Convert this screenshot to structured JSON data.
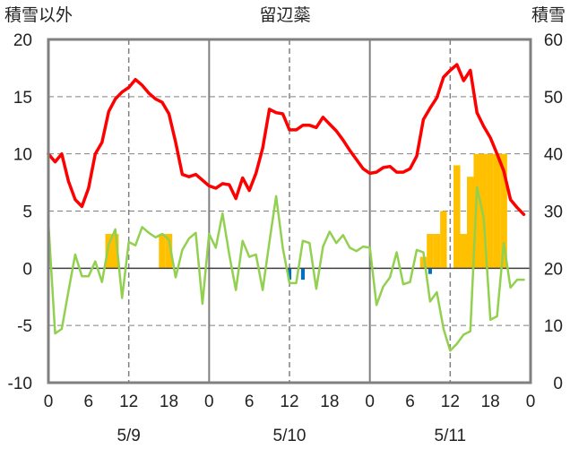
{
  "chart_data": {
    "type": "line",
    "title": "留辺蘂",
    "ylabel_left": "積雪以外",
    "ylabel_right": "積雪",
    "ylim_left": [
      -10,
      20
    ],
    "ylim_right": [
      0,
      60
    ],
    "yticks_left": [
      20,
      15,
      10,
      5,
      0,
      -5,
      -10
    ],
    "yticks_right": [
      60,
      50,
      40,
      30,
      20,
      10,
      0
    ],
    "xlim_hours": [
      0,
      72
    ],
    "xticks": [
      {
        "h": 0,
        "label": "0"
      },
      {
        "h": 6,
        "label": "6"
      },
      {
        "h": 12,
        "label": "12"
      },
      {
        "h": 18,
        "label": "18"
      },
      {
        "h": 24,
        "label": "0"
      },
      {
        "h": 30,
        "label": "6"
      },
      {
        "h": 36,
        "label": "12"
      },
      {
        "h": 42,
        "label": "18"
      },
      {
        "h": 48,
        "label": "0"
      },
      {
        "h": 54,
        "label": "6"
      },
      {
        "h": 60,
        "label": "12"
      },
      {
        "h": 66,
        "label": "18"
      },
      {
        "h": 72,
        "label": "0"
      }
    ],
    "date_labels": [
      {
        "h": 12,
        "label": "5/9"
      },
      {
        "h": 36,
        "label": "5/10"
      },
      {
        "h": 60,
        "label": "5/11"
      }
    ],
    "grid": {
      "day_lines_solid": [
        24,
        48
      ],
      "noon_lines_dashed": [
        12,
        36,
        60
      ],
      "horizontal_dashed": true
    },
    "colors": {
      "temperature": "#ff0000",
      "dewpoint": "#92d050",
      "precipitation": "#ffc000",
      "negative_bar": "#0070c0",
      "snow_depth": "#7030a0",
      "frame": "#808080"
    },
    "series": [
      {
        "key": "temperature",
        "axis": "left",
        "x": [
          0,
          1,
          2,
          3,
          4,
          5,
          6,
          7,
          8,
          9,
          10,
          11,
          12,
          13,
          14,
          15,
          16,
          17,
          18,
          19,
          20,
          21,
          22,
          23,
          24,
          25,
          26,
          27,
          28,
          29,
          30,
          31,
          32,
          33,
          34,
          35,
          36,
          37,
          38,
          39,
          40,
          41,
          42,
          43,
          44,
          45,
          46,
          47,
          48,
          49,
          50,
          51,
          52,
          53,
          54,
          55,
          56,
          57,
          58,
          59,
          60,
          61,
          62,
          63,
          64,
          65,
          66,
          67,
          68,
          69,
          70,
          71
        ],
        "values": [
          10.0,
          9.3,
          10.0,
          7.6,
          6.0,
          5.4,
          7.0,
          10.0,
          11.0,
          13.7,
          14.8,
          15.4,
          15.8,
          16.5,
          16.0,
          15.3,
          14.8,
          14.5,
          13.5,
          11.0,
          8.2,
          8.0,
          8.2,
          7.7,
          7.2,
          7.0,
          7.4,
          7.3,
          6.1,
          7.9,
          6.8,
          8.3,
          10.5,
          13.9,
          13.6,
          13.5,
          12.1,
          12.1,
          12.5,
          12.5,
          12.3,
          13.2,
          12.6,
          12.0,
          11.2,
          10.3,
          9.5,
          8.7,
          8.3,
          8.4,
          8.8,
          8.9,
          8.4,
          8.4,
          8.7,
          9.8,
          13.0,
          14.0,
          14.9,
          16.7,
          17.3,
          17.8,
          16.4,
          17.3,
          13.6,
          12.4,
          11.4,
          10.0,
          8.5,
          6.0,
          5.3,
          4.7
        ]
      },
      {
        "key": "dewpoint",
        "axis": "left",
        "x": [
          0,
          1,
          2,
          3,
          4,
          5,
          6,
          7,
          8,
          9,
          10,
          11,
          12,
          13,
          14,
          15,
          16,
          17,
          18,
          19,
          20,
          21,
          22,
          23,
          24,
          25,
          26,
          27,
          28,
          29,
          30,
          31,
          32,
          33,
          34,
          35,
          36,
          37,
          38,
          39,
          40,
          41,
          42,
          43,
          44,
          45,
          46,
          47,
          48,
          49,
          50,
          51,
          52,
          53,
          54,
          55,
          56,
          57,
          58,
          59,
          60,
          61,
          62,
          63,
          64,
          65,
          66,
          67,
          68,
          69,
          70,
          71
        ],
        "values": [
          4.0,
          -5.7,
          -5.3,
          -2.0,
          1.2,
          -0.7,
          -0.7,
          0.6,
          -1.2,
          2.1,
          3.4,
          -2.6,
          2.3,
          2.0,
          3.6,
          3.1,
          2.7,
          3.0,
          2.5,
          -0.8,
          1.6,
          2.6,
          3.1,
          -3.1,
          3.0,
          1.8,
          4.8,
          1.2,
          -1.9,
          2.4,
          1.0,
          1.2,
          -1.9,
          2.3,
          6.3,
          1.8,
          -1.3,
          -1.3,
          2.4,
          2.2,
          -1.8,
          1.9,
          3.2,
          2.2,
          2.9,
          1.8,
          1.5,
          1.9,
          1.8,
          -3.2,
          -1.6,
          -0.8,
          1.4,
          -1.4,
          -1.2,
          1.6,
          1.4,
          -2.9,
          -2.1,
          -5.3,
          -7.2,
          -6.6,
          -5.8,
          -5.5,
          7.1,
          4.4,
          -4.5,
          -4.2,
          2.2,
          -1.7,
          -1.0,
          -1.0
        ]
      },
      {
        "key": "precipitation",
        "axis": "left",
        "type": "bar",
        "x": [
          9,
          10,
          17,
          18,
          56,
          57,
          58,
          59,
          60,
          61,
          62,
          63,
          64,
          65,
          66,
          67,
          68
        ],
        "values": [
          3,
          3,
          3,
          3,
          1,
          3,
          3,
          5,
          0,
          9,
          3,
          8,
          10,
          10,
          10,
          10,
          10
        ]
      },
      {
        "key": "negative",
        "axis": "left",
        "type": "bar",
        "x": [
          36,
          38,
          57
        ],
        "values": [
          -1.0,
          -1.0,
          -0.5
        ]
      },
      {
        "key": "snow_depth",
        "axis": "right",
        "x": [
          0,
          72
        ],
        "values": [
          0,
          0
        ]
      }
    ]
  }
}
